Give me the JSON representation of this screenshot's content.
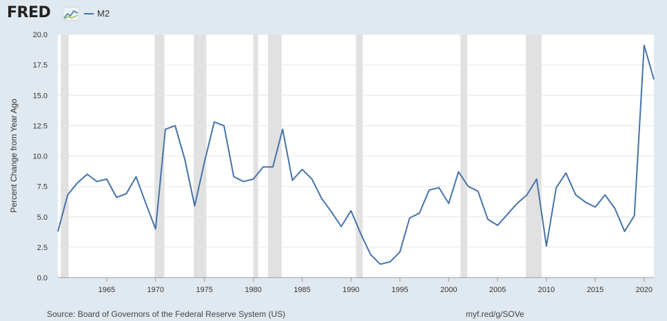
{
  "header": {
    "logo_text": "FRED",
    "logo_icon": "trend-line-icon",
    "legend_label": "M2"
  },
  "footer": {
    "source": "Source: Board of Governors of the Federal Reserve System (US)",
    "url": "myf.red/g/SOVe"
  },
  "colors": {
    "series": "#4572a7",
    "recession": "#e1e1e1",
    "background": "#e1e9f0"
  },
  "chart_data": {
    "type": "line",
    "title": "",
    "xlabel": "",
    "ylabel": "Percent Change from Year Ago",
    "xlim": [
      1960,
      2021
    ],
    "ylim": [
      0,
      20
    ],
    "x_ticks": [
      1965,
      1970,
      1975,
      1980,
      1985,
      1990,
      1995,
      2000,
      2005,
      2010,
      2015,
      2020
    ],
    "y_ticks": [
      "0.0",
      "2.5",
      "5.0",
      "7.5",
      "10.0",
      "12.5",
      "15.0",
      "17.5",
      "20.0"
    ],
    "grid": true,
    "legend": "top-left",
    "recessions": [
      [
        1960.3,
        1961.1
      ],
      [
        1969.9,
        1970.9
      ],
      [
        1973.9,
        1975.2
      ],
      [
        1980.0,
        1980.5
      ],
      [
        1981.5,
        1982.9
      ],
      [
        1990.5,
        1991.2
      ],
      [
        2001.2,
        2001.9
      ],
      [
        2007.9,
        2009.5
      ]
    ],
    "series": [
      {
        "name": "M2",
        "x": [
          1960,
          1961,
          1962,
          1963,
          1964,
          1965,
          1966,
          1967,
          1968,
          1969,
          1970,
          1971,
          1972,
          1973,
          1974,
          1975,
          1976,
          1977,
          1978,
          1979,
          1980,
          1981,
          1982,
          1983,
          1984,
          1985,
          1986,
          1987,
          1988,
          1989,
          1990,
          1991,
          1992,
          1993,
          1994,
          1995,
          1996,
          1997,
          1998,
          1999,
          2000,
          2001,
          2002,
          2003,
          2004,
          2005,
          2006,
          2007,
          2008,
          2009,
          2010,
          2011,
          2012,
          2013,
          2014,
          2015,
          2016,
          2017,
          2018,
          2019,
          2020,
          2021
        ],
        "values": [
          3.8,
          6.8,
          7.8,
          8.5,
          7.9,
          8.1,
          6.6,
          6.9,
          8.3,
          6.1,
          4.0,
          12.2,
          12.5,
          9.7,
          5.9,
          9.5,
          12.8,
          12.5,
          8.3,
          7.9,
          8.1,
          9.1,
          9.1,
          12.2,
          8.0,
          8.9,
          8.1,
          6.5,
          5.4,
          4.2,
          5.5,
          3.6,
          1.9,
          1.1,
          1.3,
          2.1,
          4.9,
          5.3,
          7.2,
          7.4,
          6.1,
          8.7,
          7.5,
          7.1,
          4.8,
          4.3,
          5.2,
          6.1,
          6.8,
          8.1,
          2.6,
          7.4,
          8.6,
          6.8,
          6.2,
          5.8,
          6.8,
          5.7,
          3.8,
          5.1,
          19.1,
          16.3
        ]
      }
    ]
  }
}
